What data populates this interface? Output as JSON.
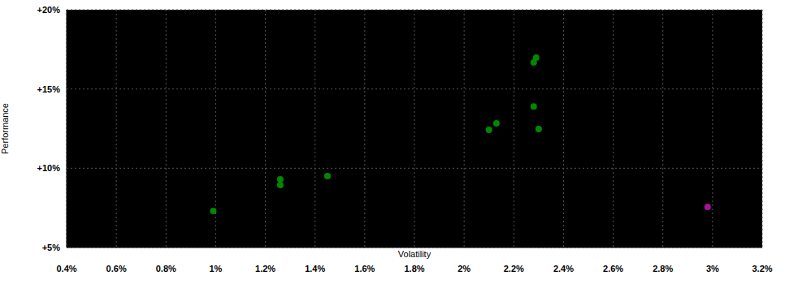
{
  "chart_data": {
    "type": "scatter",
    "x_label": "Volatility",
    "y_label": "Performance",
    "xlim": [
      0.4,
      3.2
    ],
    "ylim": [
      5,
      20
    ],
    "xticks": [
      {
        "value": 0.4,
        "label": "0.4%"
      },
      {
        "value": 0.6,
        "label": "0.6%"
      },
      {
        "value": 0.8,
        "label": "0.8%"
      },
      {
        "value": 1,
        "label": "1%"
      },
      {
        "value": 1.2,
        "label": "1.2%"
      },
      {
        "value": 1.4,
        "label": "1.4%"
      },
      {
        "value": 1.6,
        "label": "1.6%"
      },
      {
        "value": 1.8,
        "label": "1.8%"
      },
      {
        "value": 2,
        "label": "2%"
      },
      {
        "value": 2.2,
        "label": "2.2%"
      },
      {
        "value": 2.4,
        "label": "2.4%"
      },
      {
        "value": 2.6,
        "label": "2.6%"
      },
      {
        "value": 2.8,
        "label": "2.8%"
      },
      {
        "value": 3,
        "label": "3%"
      },
      {
        "value": 3.2,
        "label": "3.2%"
      }
    ],
    "yticks": [
      {
        "value": 5,
        "label": "+5%"
      },
      {
        "value": 10,
        "label": "+10%"
      },
      {
        "value": 15,
        "label": "+15%"
      },
      {
        "value": 20,
        "label": "+20%"
      }
    ],
    "grid": true,
    "series": [
      {
        "color": "#008800",
        "x": [
          0.99,
          1.26,
          1.26,
          1.45,
          2.1,
          2.13,
          2.28,
          2.3,
          2.28,
          2.29
        ],
        "values": [
          7.3,
          9.3,
          8.94,
          9.5,
          12.42,
          12.83,
          13.9,
          12.48,
          16.67,
          16.98
        ]
      },
      {
        "color": "#aa1199",
        "x": [
          2.98
        ],
        "values": [
          7.56
        ]
      }
    ]
  }
}
